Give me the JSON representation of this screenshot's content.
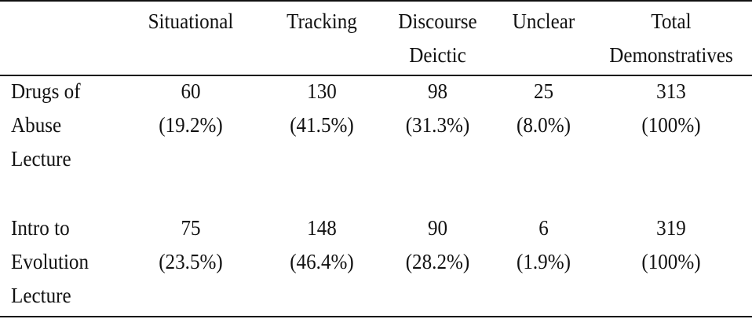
{
  "table": {
    "corner": "",
    "columns": [
      {
        "lines": [
          "Situational"
        ]
      },
      {
        "lines": [
          "Tracking"
        ]
      },
      {
        "lines": [
          "Discourse",
          "Deictic"
        ]
      },
      {
        "lines": [
          "Unclear"
        ]
      },
      {
        "lines": [
          "Total",
          "Demonstratives"
        ]
      }
    ],
    "rows": [
      {
        "label": [
          "Drugs of",
          "Abuse",
          "Lecture"
        ],
        "cells": [
          {
            "count": "60",
            "pct": "(19.2%)"
          },
          {
            "count": "130",
            "pct": "(41.5%)"
          },
          {
            "count": "98",
            "pct": "(31.3%)"
          },
          {
            "count": "25",
            "pct": "(8.0%)"
          },
          {
            "count": "313",
            "pct": "(100%)"
          }
        ]
      },
      {
        "label": [
          "Intro to",
          "Evolution",
          "Lecture"
        ],
        "cells": [
          {
            "count": "75",
            "pct": "(23.5%)"
          },
          {
            "count": "148",
            "pct": "(46.4%)"
          },
          {
            "count": "90",
            "pct": "(28.2%)"
          },
          {
            "count": "6",
            "pct": "(1.9%)"
          },
          {
            "count": "319",
            "pct": "(100%)"
          }
        ]
      }
    ]
  }
}
